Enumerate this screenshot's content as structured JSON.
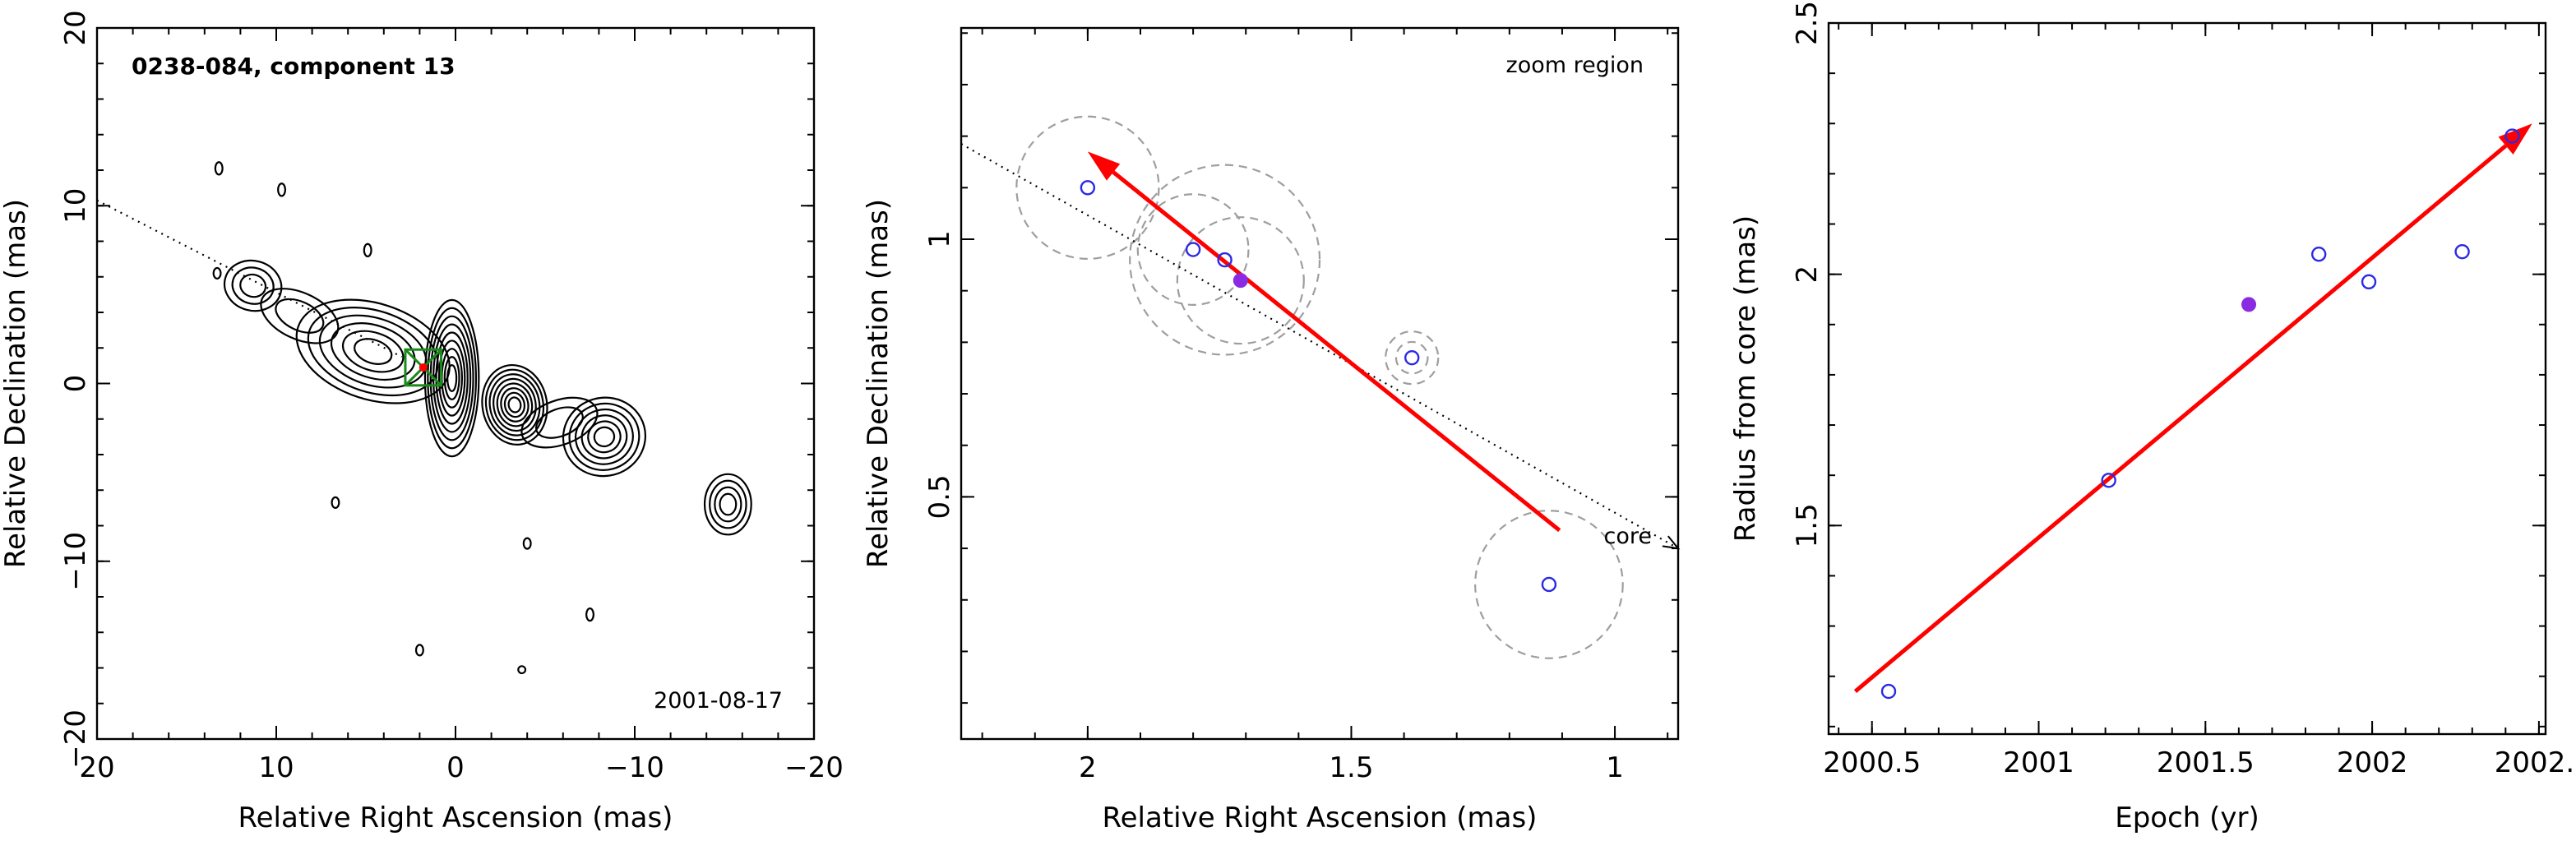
{
  "chart_data": [
    {
      "type": "contour",
      "panel": "left",
      "title": "0238-084, component 13",
      "date_label": "2001-08-17",
      "xlabel": "Relative Right Ascension (mas)",
      "ylabel": "Relative Declination (mas)",
      "xlim": [
        20,
        -20
      ],
      "ylim": [
        -20,
        20
      ],
      "xticks": [
        20,
        10,
        0,
        -10,
        -20
      ],
      "xtick_labels": [
        "20",
        "10",
        "0",
        "−10",
        "−20"
      ],
      "yticks": [
        -20,
        -10,
        0,
        10,
        20
      ],
      "ytick_labels": [
        "−20",
        "−10",
        "0",
        "10",
        "20"
      ],
      "contour_blobs": [
        {
          "x": 0.2,
          "y": 0.3,
          "w": 3.0,
          "h": 8.8,
          "rot": 0,
          "levels": 9
        },
        {
          "x": -3.3,
          "y": -1.2,
          "w": 3.6,
          "h": 4.5,
          "rot": -10,
          "levels": 8
        },
        {
          "x": -5.8,
          "y": -2.2,
          "w": 4.4,
          "h": 2.5,
          "rot": -20,
          "levels": 2
        },
        {
          "x": -8.3,
          "y": -3.0,
          "w": 4.6,
          "h": 4.4,
          "rot": -15,
          "levels": 6
        },
        {
          "x": 4.6,
          "y": 1.8,
          "w": 8.8,
          "h": 5.4,
          "rot": 18,
          "levels": 6
        },
        {
          "x": 8.7,
          "y": 3.8,
          "w": 4.6,
          "h": 2.6,
          "rot": 25,
          "levels": 2
        },
        {
          "x": 11.3,
          "y": 5.5,
          "w": 3.2,
          "h": 2.8,
          "rot": 15,
          "levels": 3
        },
        {
          "x": -15.2,
          "y": -6.8,
          "w": 2.6,
          "h": 3.4,
          "rot": 0,
          "levels": 4
        },
        {
          "x": 13.2,
          "y": 12.1,
          "w": 0.4,
          "h": 0.7,
          "rot": 0,
          "levels": 1
        },
        {
          "x": 9.7,
          "y": 10.9,
          "w": 0.4,
          "h": 0.7,
          "rot": 0,
          "levels": 1
        },
        {
          "x": 13.3,
          "y": 6.2,
          "w": 0.4,
          "h": 0.6,
          "rot": 0,
          "levels": 1
        },
        {
          "x": 4.9,
          "y": 7.5,
          "w": 0.4,
          "h": 0.7,
          "rot": 0,
          "levels": 1
        },
        {
          "x": 6.7,
          "y": -6.7,
          "w": 0.4,
          "h": 0.6,
          "rot": 0,
          "levels": 1
        },
        {
          "x": -4.0,
          "y": -9.0,
          "w": 0.4,
          "h": 0.6,
          "rot": 0,
          "levels": 1
        },
        {
          "x": -7.5,
          "y": -13.0,
          "w": 0.4,
          "h": 0.7,
          "rot": 0,
          "levels": 1
        },
        {
          "x": 2.0,
          "y": -15.0,
          "w": 0.4,
          "h": 0.6,
          "rot": 0,
          "levels": 1
        },
        {
          "x": -3.7,
          "y": -16.1,
          "w": 0.4,
          "h": 0.4,
          "rot": 0,
          "levels": 1
        }
      ],
      "component_marker": {
        "x": 1.8,
        "y": 0.9,
        "size": 2.0,
        "color": "#1a8a1a"
      },
      "component_point": {
        "x": 1.8,
        "y": 0.9,
        "color": "#ff0000"
      },
      "direction_line": {
        "x": [
          20,
          3.0
        ],
        "y": [
          10.3,
          1.5
        ]
      }
    },
    {
      "type": "scatter",
      "panel": "middle",
      "zoom_label": "zoom region",
      "core_label": "core",
      "xlabel": "Relative Right Ascension (mas)",
      "ylabel": "Relative Declination (mas)",
      "xlim": [
        2.24,
        0.88
      ],
      "ylim": [
        0.03,
        1.41
      ],
      "xticks": [
        2,
        1.5,
        1
      ],
      "xtick_labels": [
        "2",
        "1.5",
        "1"
      ],
      "yticks": [
        0.5,
        1
      ],
      "ytick_labels": [
        "0.5",
        "1"
      ],
      "points": [
        {
          "x": 2.0,
          "y": 1.1,
          "r": 0.135,
          "filled": false
        },
        {
          "x": 1.8,
          "y": 0.98,
          "r": 0.105,
          "filled": false
        },
        {
          "x": 1.74,
          "y": 0.96,
          "r": 0.18,
          "filled": false
        },
        {
          "x": 1.71,
          "y": 0.92,
          "r": 0.12,
          "filled": true
        },
        {
          "x": 1.385,
          "y": 0.77,
          "r": 0.05,
          "filled": false
        },
        {
          "x": 1.125,
          "y": 0.33,
          "r": 0.14,
          "filled": false
        }
      ],
      "arrow": {
        "x": [
          1.105,
          2.0
        ],
        "y": [
          0.435,
          1.17
        ],
        "color": "#ff0000"
      },
      "dotted_line": {
        "x": [
          2.24,
          0.88
        ],
        "y": [
          1.185,
          0.4
        ]
      }
    },
    {
      "type": "scatter",
      "panel": "right",
      "xlabel": "Epoch (yr)",
      "ylabel": "Radius from core (mas)",
      "xlim": [
        2000.37,
        2002.52
      ],
      "ylim": [
        1.085,
        2.5
      ],
      "xticks": [
        2000.5,
        2001,
        2001.5,
        2002,
        2002.5
      ],
      "xtick_labels": [
        "2000.5",
        "2001",
        "2001.5",
        "2002",
        "2002.."
      ],
      "yticks": [
        1.5,
        2,
        2.5
      ],
      "ytick_labels": [
        "1.5",
        "2",
        "2.5"
      ],
      "points": [
        {
          "x": 2000.55,
          "y": 1.17,
          "filled": false
        },
        {
          "x": 2001.21,
          "y": 1.59,
          "filled": false
        },
        {
          "x": 2001.63,
          "y": 1.94,
          "filled": true
        },
        {
          "x": 2001.84,
          "y": 2.04,
          "filled": false
        },
        {
          "x": 2001.99,
          "y": 1.985,
          "filled": false
        },
        {
          "x": 2002.27,
          "y": 2.045,
          "filled": false
        },
        {
          "x": 2002.42,
          "y": 2.275,
          "filled": false
        }
      ],
      "fit_arrow": {
        "x": [
          2000.45,
          2002.48
        ],
        "y": [
          1.17,
          2.3
        ],
        "color": "#ff0000"
      }
    }
  ]
}
